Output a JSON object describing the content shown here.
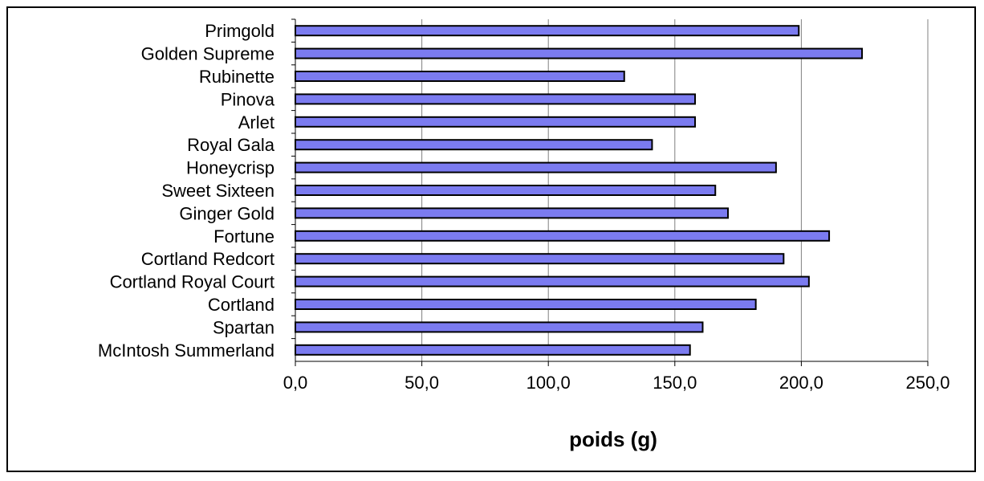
{
  "chart_data": {
    "type": "bar",
    "orientation": "horizontal",
    "title": "",
    "xlabel": "poids (g)",
    "ylabel": "",
    "xlim": [
      0,
      250
    ],
    "x_ticks": [
      0,
      50,
      100,
      150,
      200,
      250
    ],
    "x_tick_labels": [
      "0,0",
      "50,0",
      "100,0",
      "150,0",
      "200,0",
      "250,0"
    ],
    "grid": "vertical",
    "legend": "none",
    "bar_color": "#7b7bf0",
    "categories": [
      "Primgold",
      "Golden Supreme",
      "Rubinette",
      "Pinova",
      "Arlet",
      "Royal Gala",
      "Honeycrisp",
      "Sweet Sixteen",
      "Ginger Gold",
      "Fortune",
      "Cortland Redcort",
      "Cortland Royal Court",
      "Cortland",
      "Spartan",
      "McIntosh Summerland"
    ],
    "values": [
      199,
      224,
      130,
      158,
      158,
      141,
      190,
      166,
      171,
      211,
      193,
      203,
      182,
      161,
      156
    ]
  }
}
